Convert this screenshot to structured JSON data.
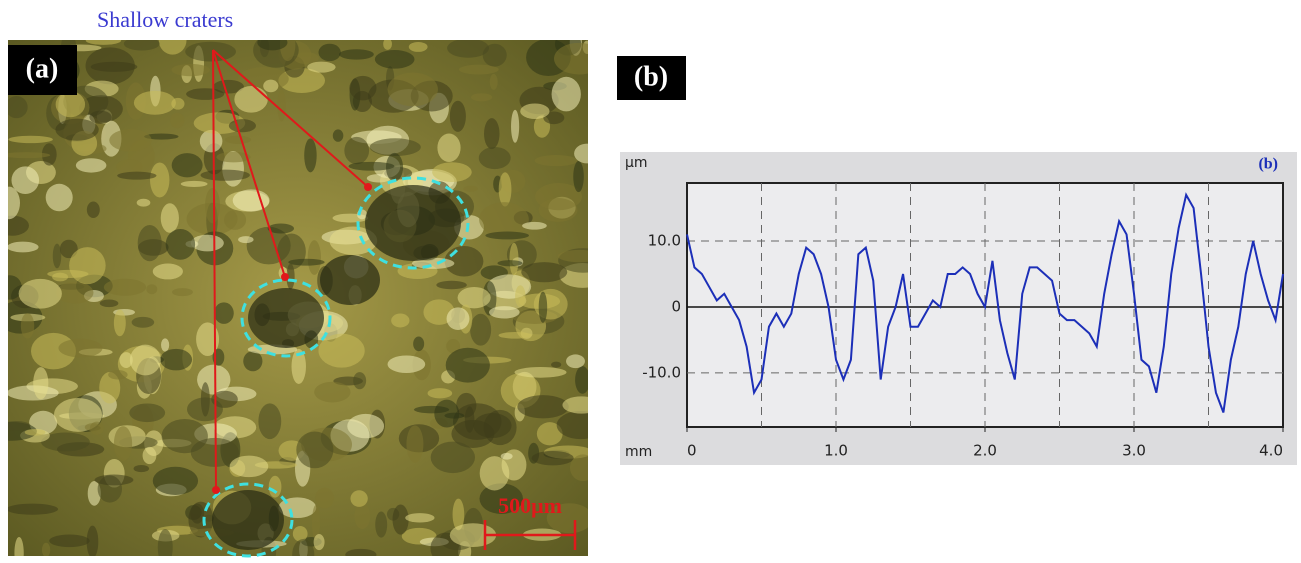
{
  "panel_a": {
    "label": "(a)",
    "annotation": "Shallow craters",
    "scale_bar": "500μm"
  },
  "panel_b": {
    "label": "(b)"
  },
  "chart_data": {
    "type": "line",
    "corner_label": "(b)",
    "y_unit": "μm",
    "x_unit": "mm",
    "x": [
      0,
      0.05,
      0.1,
      0.15,
      0.2,
      0.25,
      0.3,
      0.35,
      0.4,
      0.45,
      0.5,
      0.55,
      0.6,
      0.65,
      0.7,
      0.75,
      0.8,
      0.85,
      0.9,
      0.95,
      1.0,
      1.05,
      1.1,
      1.15,
      1.2,
      1.25,
      1.3,
      1.35,
      1.4,
      1.45,
      1.5,
      1.55,
      1.6,
      1.65,
      1.7,
      1.75,
      1.8,
      1.85,
      1.9,
      1.95,
      2.0,
      2.05,
      2.1,
      2.15,
      2.2,
      2.25,
      2.3,
      2.35,
      2.4,
      2.45,
      2.5,
      2.55,
      2.6,
      2.65,
      2.7,
      2.75,
      2.8,
      2.85,
      2.9,
      2.95,
      3.0,
      3.05,
      3.1,
      3.15,
      3.2,
      3.25,
      3.3,
      3.35,
      3.4,
      3.45,
      3.5,
      3.55,
      3.6,
      3.65,
      3.7,
      3.75,
      3.8,
      3.85,
      3.9,
      3.95,
      4.0
    ],
    "series": [
      {
        "color": "#1c2fb8",
        "values": [
          11,
          6,
          5,
          3,
          1,
          2,
          0,
          -2,
          -6,
          -13,
          -11,
          -3,
          -1,
          -3,
          -1,
          5,
          9,
          8,
          5,
          0,
          -8,
          -11,
          -8,
          8,
          9,
          4,
          -11,
          -3,
          0,
          5,
          -3,
          -3,
          -1,
          1,
          0,
          5,
          5,
          6,
          5,
          2,
          0,
          7,
          -2,
          -7,
          -11,
          2,
          6,
          6,
          5,
          4,
          -1,
          -2,
          -2,
          -3,
          -4,
          -6,
          2,
          8,
          13,
          11,
          2,
          -8,
          -9,
          -13,
          -6,
          5,
          12,
          17,
          15,
          5,
          -6,
          -13,
          -16,
          -8,
          -3,
          5,
          10,
          5,
          1,
          -2,
          5
        ]
      }
    ],
    "xlim": [
      0,
      4.0
    ],
    "ylim": [
      -18.2,
      18.8
    ],
    "xticks": [
      0,
      {
        "value": 1,
        "label": "1.0"
      },
      {
        "value": 2,
        "label": "2.0"
      },
      {
        "value": 3,
        "label": "3.0"
      },
      {
        "value": 4,
        "label": "4.0"
      }
    ],
    "yticks": [
      {
        "value": 10,
        "label": "10.0"
      },
      0,
      {
        "value": -10,
        "label": "-10.0"
      }
    ],
    "x_gridlines": [
      0.5,
      1,
      1.5,
      2,
      2.5,
      3,
      3.5
    ]
  }
}
